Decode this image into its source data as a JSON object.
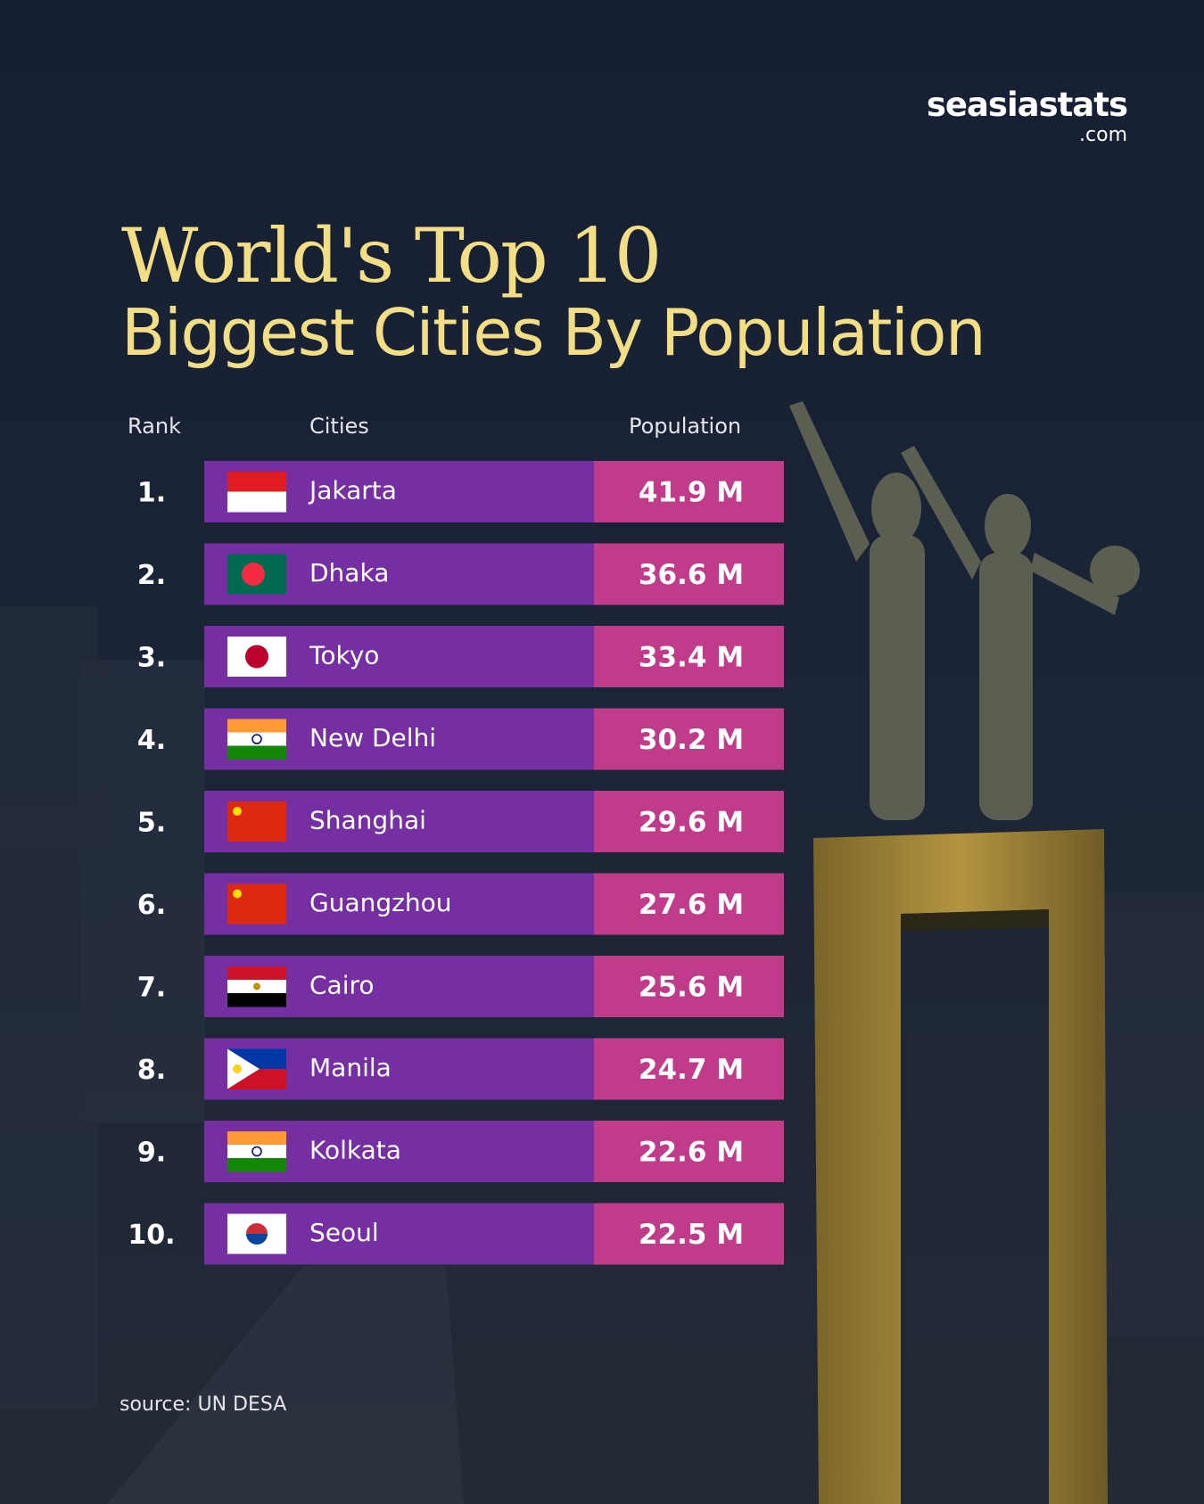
{
  "brand": {
    "name": "seasiastats",
    "suffix": ".com"
  },
  "title": {
    "line1": "World's Top 10",
    "line2": "Biggest Cities By Population"
  },
  "table": {
    "headers": [
      "Rank",
      "Cities",
      "Population"
    ],
    "rows": [
      [
        "1.",
        "Jakarta",
        "41.9 M"
      ],
      [
        "2.",
        "Dhaka",
        "36.6 M"
      ],
      [
        "3.",
        "Tokyo",
        "33.4 M"
      ],
      [
        "4.",
        "New Delhi",
        "30.2 M"
      ],
      [
        "5.",
        "Shanghai",
        "29.6 M"
      ],
      [
        "6.",
        "Guangzhou",
        "27.6 M"
      ],
      [
        "7.",
        "Cairo",
        "25.6 M"
      ],
      [
        "8.",
        "Manila",
        "24.7 M"
      ],
      [
        "9.",
        "Kolkata",
        "22.6 M"
      ],
      [
        "10.",
        "Seoul",
        "22.5 M"
      ]
    ]
  },
  "source": "source: UN DESA"
}
